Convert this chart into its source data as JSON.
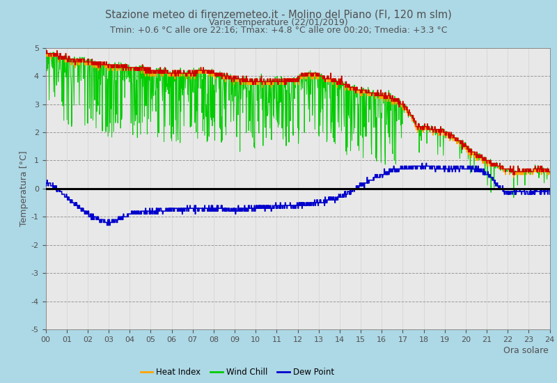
{
  "title": "Stazione meteo di firenzemeteo.it - Molino del Piano (FI, 120 m slm)",
  "subtitle": "Varie temperature (22/01/2019)",
  "subtitle2": "Tmin: +0.6 °C alle ore 22:16; Tmax: +4.8 °C alle ore 00:20; Tmedia: +3.3 °C",
  "ylabel": "Temperatura [°C]",
  "xlabel": "Ora solare",
  "ylim": [
    -5,
    5
  ],
  "xlim": [
    0,
    1440
  ],
  "xticks": [
    0,
    60,
    120,
    180,
    240,
    300,
    360,
    420,
    480,
    540,
    600,
    660,
    720,
    780,
    840,
    900,
    960,
    1020,
    1080,
    1140,
    1200,
    1260,
    1320,
    1380,
    1440
  ],
  "xticklabels": [
    "00",
    "01",
    "02",
    "03",
    "04",
    "05",
    "06",
    "07",
    "08",
    "09",
    "10",
    "11",
    "12",
    "13",
    "14",
    "15",
    "16",
    "17",
    "18",
    "19",
    "20",
    "21",
    "22",
    "23",
    "24"
  ],
  "yticks": [
    -5,
    -4,
    -3,
    -2,
    -1,
    0,
    1,
    2,
    3,
    4,
    5
  ],
  "background_color": "#add8e6",
  "plot_background": "#e8e8e8",
  "title_color": "#505050",
  "temp_color": "#cc0000",
  "heat_index_color": "#ffa500",
  "wind_chill_color": "#00cc00",
  "dew_point_color": "#0000cc",
  "zero_line_color": "#000000"
}
